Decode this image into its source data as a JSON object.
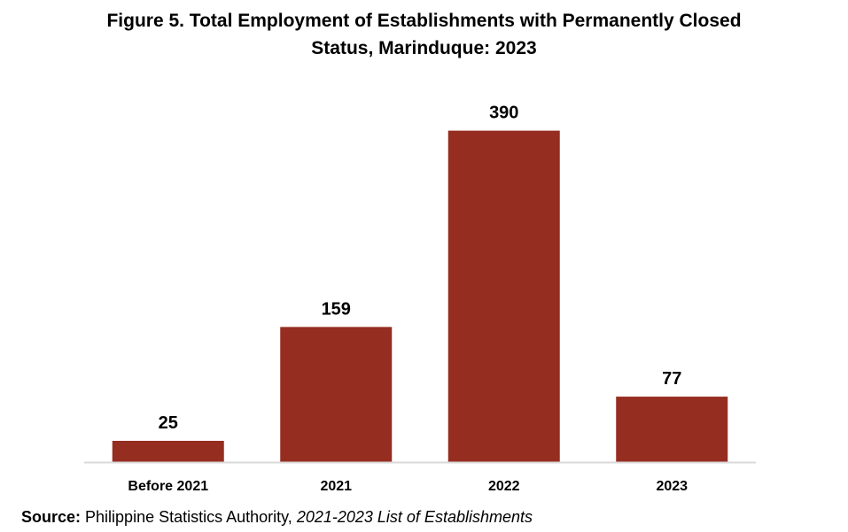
{
  "chart_data": {
    "type": "bar",
    "title_line1": "Figure 5. Total Employment of Establishments with Permanently Closed",
    "title_line2": "Status, Marinduque: 2023",
    "categories": [
      "Before 2021",
      "2021",
      "2022",
      "2023"
    ],
    "values": [
      25,
      159,
      390,
      77
    ],
    "data_labels": [
      "25",
      "159",
      "390",
      "77"
    ],
    "xlabel": "",
    "ylabel": "",
    "ylim": [
      0,
      400
    ],
    "grid": false,
    "legend": "none",
    "bar_color": "#962D21",
    "axis_color": "#D9D9D9"
  },
  "source": {
    "label": "Source:",
    "publisher": " Philippine Statistics Authority, ",
    "publication": "2021-2023 List of Establishments"
  }
}
